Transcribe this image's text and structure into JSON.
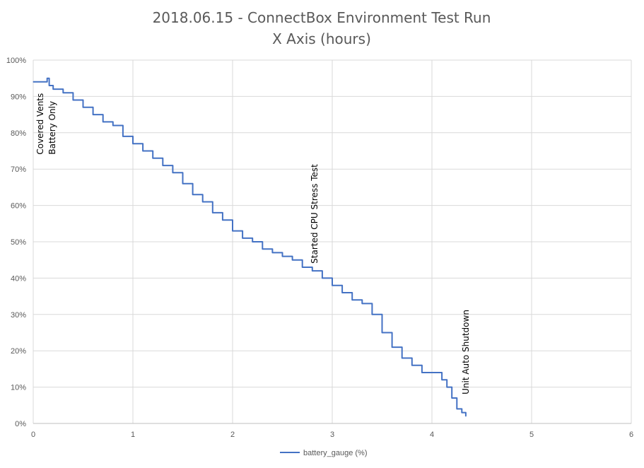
{
  "chart_data": {
    "type": "line",
    "title": "2018.06.15 - ConnectBox Environment Test Run",
    "subtitle": "X Axis (hours)",
    "xlabel": "",
    "ylabel": "",
    "xlim": [
      0,
      6
    ],
    "ylim": [
      0,
      100
    ],
    "x_ticks": [
      "0",
      "1",
      "2",
      "3",
      "4",
      "5",
      "6"
    ],
    "y_ticks": [
      "0%",
      "10%",
      "20%",
      "30%",
      "40%",
      "50%",
      "60%",
      "70%",
      "80%",
      "90%",
      "100%"
    ],
    "grid": true,
    "legend_position": "bottom",
    "series": [
      {
        "name": "battery_gauge (%)",
        "color": "#4472C4",
        "x": [
          0,
          0.13,
          0.14,
          0.16,
          0.2,
          0.3,
          0.4,
          0.5,
          0.6,
          0.7,
          0.8,
          0.9,
          1.0,
          1.1,
          1.2,
          1.3,
          1.4,
          1.5,
          1.6,
          1.7,
          1.8,
          1.9,
          2.0,
          2.1,
          2.2,
          2.3,
          2.4,
          2.5,
          2.6,
          2.7,
          2.8,
          2.9,
          3.0,
          3.1,
          3.2,
          3.3,
          3.4,
          3.5,
          3.6,
          3.7,
          3.8,
          3.9,
          4.0,
          4.1,
          4.15,
          4.2,
          4.25,
          4.3,
          4.34
        ],
        "y": [
          94,
          94,
          95,
          93,
          92,
          91,
          89,
          87,
          85,
          83,
          82,
          79,
          77,
          75,
          73,
          71,
          69,
          66,
          63,
          61,
          58,
          56,
          53,
          51,
          50,
          48,
          47,
          46,
          45,
          43,
          42,
          40,
          38,
          36,
          34,
          33,
          30,
          25,
          21,
          18,
          16,
          14,
          14,
          12,
          10,
          7,
          4,
          3,
          2
        ]
      }
    ],
    "annotations": [
      {
        "lines": [
          "Covered Vents",
          "Battery Only"
        ],
        "x": 0.1,
        "y": 74
      },
      {
        "lines": [
          "Started CPU Stress Test"
        ],
        "x": 2.85,
        "y": 44
      },
      {
        "lines": [
          "Unit Auto Shutdown"
        ],
        "x": 4.37,
        "y": 8
      }
    ]
  }
}
